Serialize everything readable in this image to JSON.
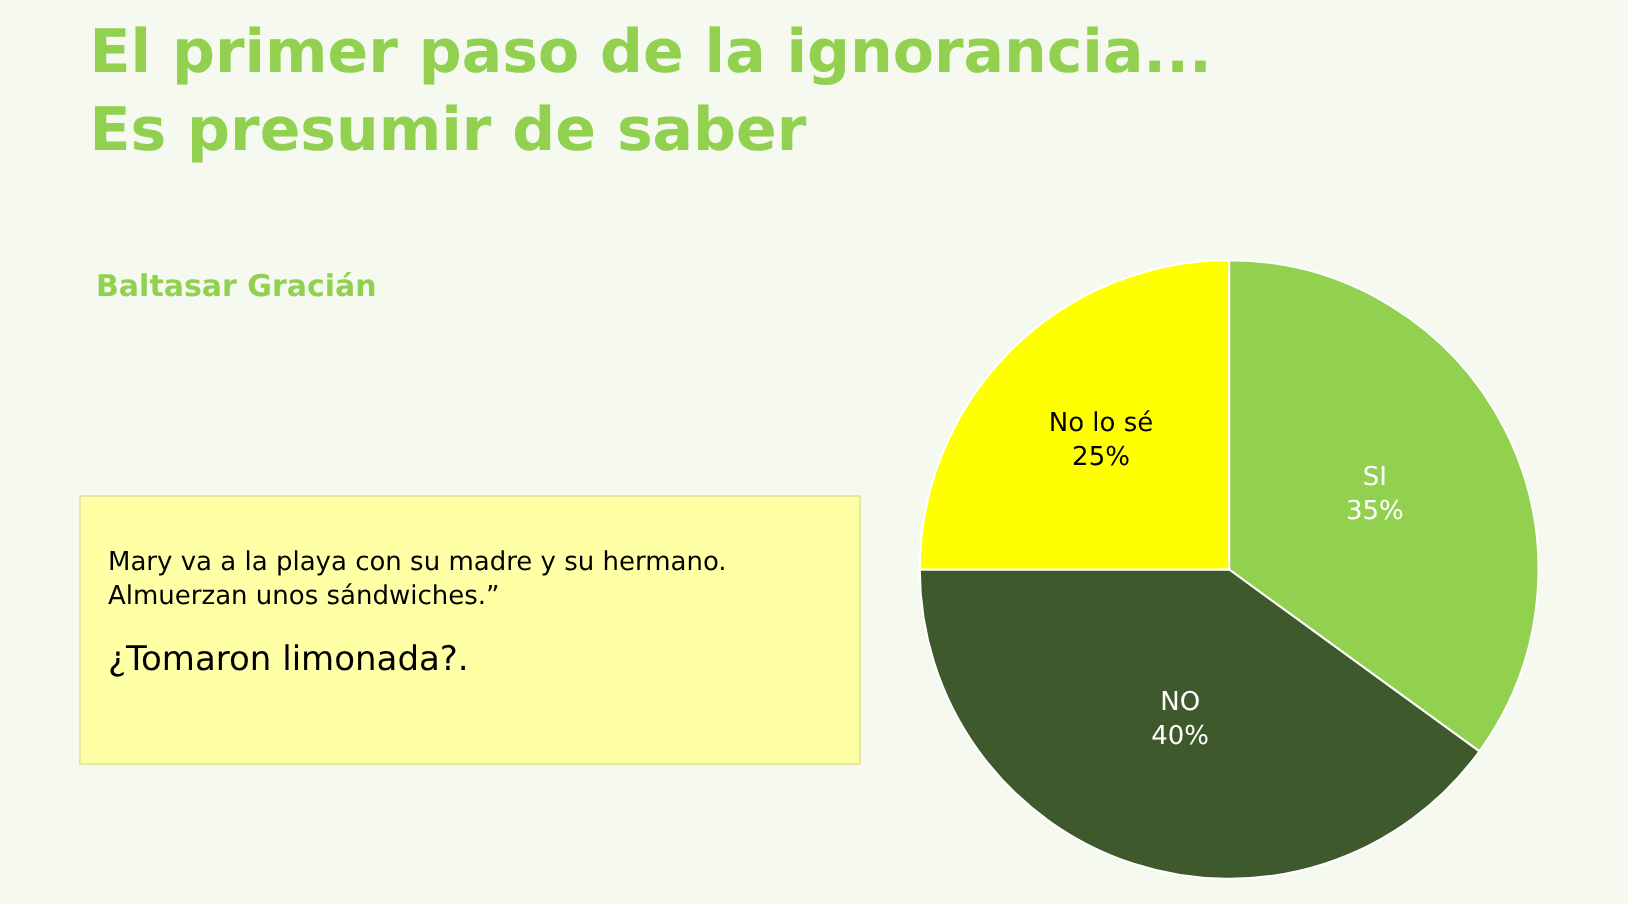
{
  "chart_data": {
    "type": "pie",
    "title": "El primer paso de la ignorancia...\nEs presumir de saber",
    "subtitle": "Baltasar Gracián",
    "categories": [
      "SI",
      "NO",
      "No lo sé"
    ],
    "values": [
      35,
      40,
      25
    ],
    "value_labels": [
      "35%",
      "40%",
      "25%"
    ],
    "colors": [
      "#92d050",
      "#3e5a2c",
      "#ffff00"
    ],
    "legend": false,
    "annotations": [
      "Mary va a la playa con su madre y su hermano.\nAlmuerzan unos sándwiches.”",
      "¿Tomaron limonada?."
    ]
  }
}
